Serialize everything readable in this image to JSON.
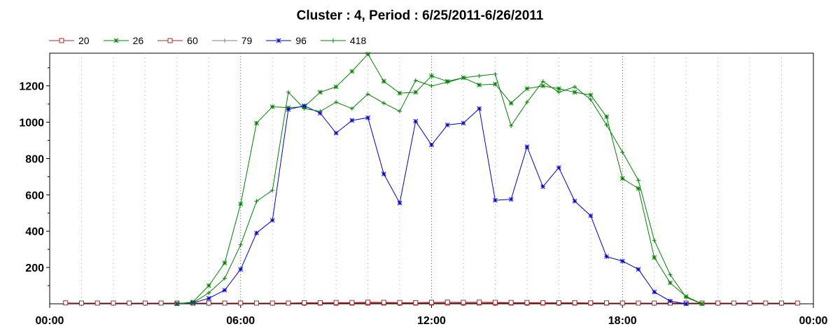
{
  "chart_data": {
    "type": "line",
    "title": "Cluster : 4, Period : 6/25/2011-6/26/2011",
    "xlabel": "",
    "ylabel": "",
    "x_tick_labels": [
      "00:00",
      "06:00",
      "12:00",
      "18:00",
      "00:00"
    ],
    "y_ticks": [
      200,
      400,
      600,
      800,
      1000,
      1200
    ],
    "xlim": [
      0,
      24
    ],
    "ylim": [
      0,
      1380
    ],
    "grid": {
      "vertical_minor": true,
      "horizontal": false
    },
    "legend_position": "top-left",
    "series": [
      {
        "name": "20",
        "color": "#a52a2a",
        "marker": "square",
        "points": [
          [
            0.5,
            5
          ],
          [
            1,
            4
          ],
          [
            1.5,
            4
          ],
          [
            2,
            4
          ],
          [
            2.5,
            4
          ],
          [
            3,
            4
          ],
          [
            3.5,
            4
          ],
          [
            4,
            4
          ],
          [
            4.5,
            4
          ],
          [
            5,
            4
          ],
          [
            5.5,
            4
          ],
          [
            6,
            4
          ],
          [
            6.5,
            4
          ],
          [
            7,
            4
          ],
          [
            7.5,
            4
          ],
          [
            8,
            4
          ],
          [
            8.5,
            4
          ],
          [
            9,
            4
          ],
          [
            9.5,
            4
          ],
          [
            10,
            4
          ],
          [
            10.5,
            4
          ],
          [
            11,
            4
          ],
          [
            11.5,
            4
          ],
          [
            12,
            4
          ],
          [
            12.5,
            4
          ],
          [
            13,
            4
          ],
          [
            13.5,
            4
          ],
          [
            14,
            4
          ],
          [
            14.5,
            4
          ],
          [
            15,
            4
          ],
          [
            15.5,
            4
          ],
          [
            16,
            4
          ],
          [
            16.5,
            4
          ],
          [
            17,
            4
          ],
          [
            17.5,
            4
          ],
          [
            18,
            4
          ],
          [
            18.5,
            4
          ],
          [
            19,
            4
          ],
          [
            19.5,
            4
          ],
          [
            20,
            4
          ],
          [
            20.5,
            4
          ],
          [
            21,
            4
          ],
          [
            21.5,
            4
          ],
          [
            22,
            4
          ],
          [
            22.5,
            4
          ],
          [
            23,
            4
          ],
          [
            23.5,
            4
          ]
        ]
      },
      {
        "name": "26",
        "color": "#008000",
        "marker": "star",
        "points": [
          [
            4,
            0
          ],
          [
            4.5,
            10
          ],
          [
            5,
            100
          ],
          [
            5.5,
            225
          ],
          [
            6,
            550
          ],
          [
            6.5,
            995
          ],
          [
            7,
            1085
          ],
          [
            7.5,
            1080
          ],
          [
            8,
            1085
          ],
          [
            8.5,
            1165
          ],
          [
            9,
            1195
          ],
          [
            9.5,
            1280
          ],
          [
            10,
            1375
          ],
          [
            10.5,
            1225
          ],
          [
            11,
            1160
          ],
          [
            11.5,
            1165
          ],
          [
            12,
            1255
          ],
          [
            12.5,
            1225
          ],
          [
            13,
            1245
          ],
          [
            13.5,
            1205
          ],
          [
            14,
            1210
          ],
          [
            14.5,
            1105
          ],
          [
            15,
            1185
          ],
          [
            15.5,
            1200
          ],
          [
            16,
            1185
          ],
          [
            16.5,
            1165
          ],
          [
            17,
            1150
          ],
          [
            17.5,
            1030
          ],
          [
            18,
            690
          ],
          [
            18.5,
            635
          ],
          [
            19,
            255
          ],
          [
            19.5,
            115
          ],
          [
            20,
            40
          ],
          [
            20.5,
            0
          ]
        ]
      },
      {
        "name": "60",
        "color": "#a52a2a",
        "marker": "square",
        "points": [
          [
            7.5,
            4
          ],
          [
            8,
            6
          ],
          [
            8.5,
            6
          ],
          [
            9,
            7
          ],
          [
            9.5,
            7
          ],
          [
            10,
            9
          ],
          [
            10.5,
            8
          ],
          [
            11,
            7
          ],
          [
            11.5,
            6
          ],
          [
            12,
            8
          ],
          [
            12.5,
            9
          ],
          [
            13,
            8
          ],
          [
            13.5,
            9
          ],
          [
            14,
            8
          ],
          [
            14.5,
            7
          ],
          [
            15,
            7
          ],
          [
            15.5,
            6
          ],
          [
            16,
            6
          ],
          [
            16.5,
            6
          ],
          [
            17,
            5
          ],
          [
            17.5,
            5
          ]
        ]
      },
      {
        "name": "79",
        "color": "#808080",
        "marker": "plus",
        "points": [
          [
            20.5,
            0
          ]
        ]
      },
      {
        "name": "96",
        "color": "#0000cc",
        "marker": "star",
        "points": [
          [
            4,
            0
          ],
          [
            4.5,
            5
          ],
          [
            5,
            30
          ],
          [
            5.5,
            75
          ],
          [
            6,
            190
          ],
          [
            6.5,
            390
          ],
          [
            7,
            460
          ],
          [
            7.5,
            1070
          ],
          [
            8,
            1090
          ],
          [
            8.5,
            1050
          ],
          [
            9,
            940
          ],
          [
            9.5,
            1010
          ],
          [
            10,
            1025
          ],
          [
            10.5,
            715
          ],
          [
            11,
            555
          ],
          [
            11.5,
            1005
          ],
          [
            12,
            875
          ],
          [
            12.5,
            985
          ],
          [
            13,
            995
          ],
          [
            13.5,
            1075
          ],
          [
            14,
            570
          ],
          [
            14.5,
            575
          ],
          [
            15,
            865
          ],
          [
            15.5,
            645
          ],
          [
            16,
            750
          ],
          [
            16.5,
            565
          ],
          [
            17,
            485
          ],
          [
            17.5,
            260
          ],
          [
            18,
            235
          ],
          [
            18.5,
            190
          ],
          [
            19,
            65
          ],
          [
            19.5,
            15
          ],
          [
            20,
            0
          ]
        ]
      },
      {
        "name": "418",
        "color": "#008000",
        "marker": "plus",
        "points": [
          [
            4,
            0
          ],
          [
            4.5,
            5
          ],
          [
            5,
            60
          ],
          [
            5.5,
            140
          ],
          [
            6,
            325
          ],
          [
            6.5,
            565
          ],
          [
            7,
            625
          ],
          [
            7.5,
            1165
          ],
          [
            8,
            1075
          ],
          [
            8.5,
            1060
          ],
          [
            9,
            1110
          ],
          [
            9.5,
            1075
          ],
          [
            10,
            1155
          ],
          [
            10.5,
            1105
          ],
          [
            11,
            1060
          ],
          [
            11.5,
            1230
          ],
          [
            12,
            1200
          ],
          [
            12.5,
            1220
          ],
          [
            13,
            1245
          ],
          [
            13.5,
            1255
          ],
          [
            14,
            1265
          ],
          [
            14.5,
            980
          ],
          [
            15,
            1110
          ],
          [
            15.5,
            1225
          ],
          [
            16,
            1165
          ],
          [
            16.5,
            1195
          ],
          [
            17,
            1125
          ],
          [
            17.5,
            985
          ],
          [
            18,
            835
          ],
          [
            18.5,
            680
          ],
          [
            19,
            350
          ],
          [
            19.5,
            160
          ],
          [
            20,
            35
          ],
          [
            20.5,
            0
          ]
        ]
      }
    ]
  }
}
